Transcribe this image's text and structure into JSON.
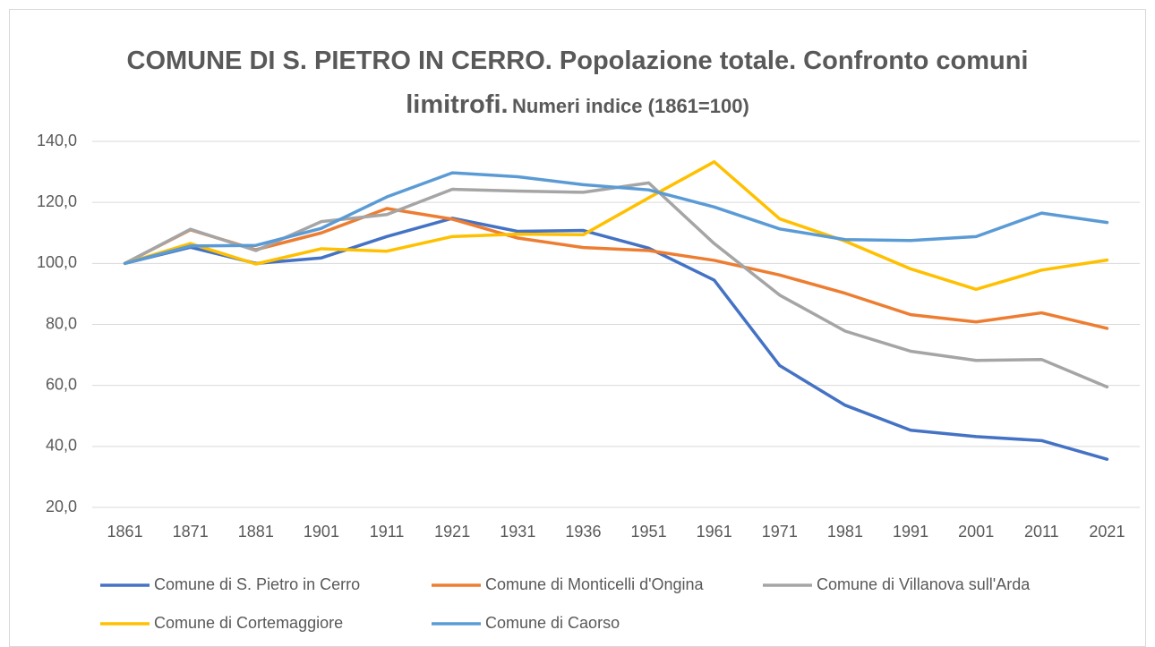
{
  "chart_data": {
    "type": "line",
    "title": "COMUNE DI S. PIETRO IN CERRO. Popolazione totale. Confronto comuni limitrofi.",
    "subtitle": "Numeri indice (1861=100)",
    "categories": [
      "1861",
      "1871",
      "1881",
      "1901",
      "1911",
      "1921",
      "1931",
      "1936",
      "1951",
      "1961",
      "1971",
      "1981",
      "1991",
      "2001",
      "2011",
      "2021"
    ],
    "series": [
      {
        "name": "Comune di S. Pietro in Cerro",
        "color": "#4472c4",
        "values": [
          100,
          105.3,
          100,
          101.8,
          108.8,
          114.8,
          110.5,
          110.8,
          105,
          94.5,
          66.5,
          53.5,
          45.3,
          43.2,
          41.9,
          35.8
        ]
      },
      {
        "name": "Comune di Monticelli d'Ongina",
        "color": "#ed7d31",
        "values": [
          100,
          111,
          104.5,
          110,
          118,
          114.5,
          108.3,
          105.2,
          104.2,
          101,
          96.2,
          90.2,
          83.2,
          80.8,
          83.8,
          78.7
        ]
      },
      {
        "name": "Comune di Villanova sull'Arda",
        "color": "#a5a5a5",
        "values": [
          100,
          111.2,
          104.2,
          113.7,
          116,
          124.3,
          123.7,
          123.3,
          126.4,
          106.5,
          89.6,
          77.8,
          71.2,
          68.2,
          68.5,
          59.5
        ]
      },
      {
        "name": "Comune di Cortemaggiore",
        "color": "#ffc000",
        "values": [
          100,
          106.5,
          99.8,
          104.8,
          104,
          108.8,
          109.6,
          109.4,
          121.5,
          133.3,
          114.6,
          107.3,
          98.2,
          91.5,
          97.8,
          101.1
        ]
      },
      {
        "name": "Comune di Caorso",
        "color": "#5b9bd5",
        "values": [
          100,
          105.7,
          105.9,
          111.5,
          121.8,
          129.7,
          128.4,
          125.8,
          124.1,
          118.5,
          111.3,
          107.8,
          107.5,
          108.8,
          116.5,
          113.4
        ]
      }
    ],
    "ylim": [
      20,
      140
    ],
    "yticks": [
      {
        "value": 20,
        "label": "20,0"
      },
      {
        "value": 40,
        "label": "40,0"
      },
      {
        "value": 60,
        "label": "60,0"
      },
      {
        "value": 80,
        "label": "80,0"
      },
      {
        "value": 100,
        "label": "100,0"
      },
      {
        "value": 120,
        "label": "120,0"
      },
      {
        "value": 140,
        "label": "140,0"
      }
    ],
    "grid": true,
    "legend": "bottom"
  }
}
